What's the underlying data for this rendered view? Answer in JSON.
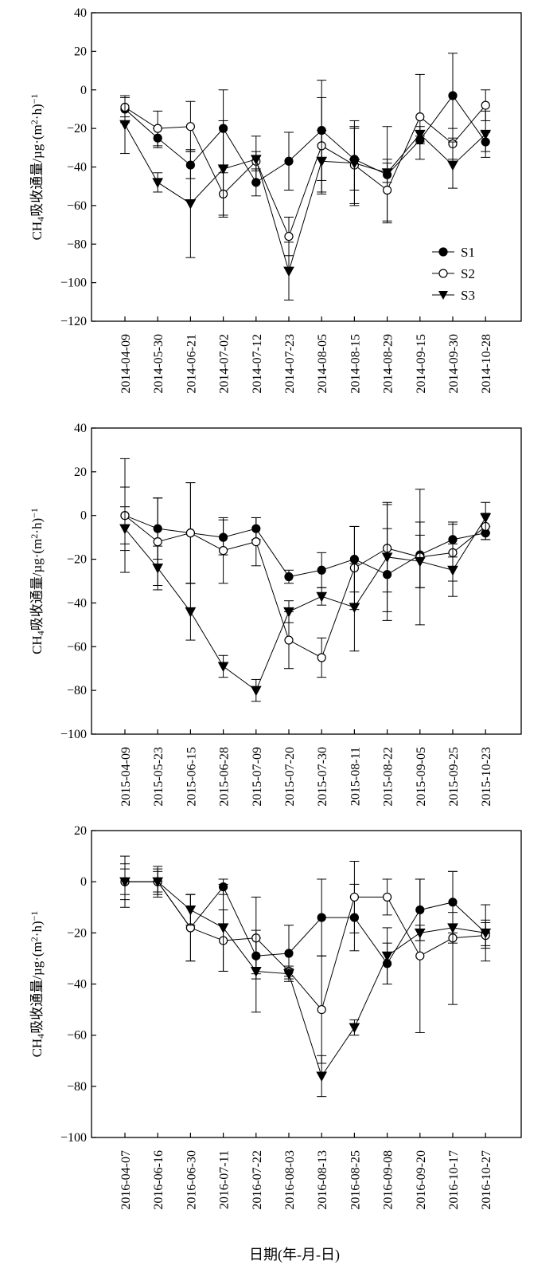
{
  "x_axis_label": "日期(年-月-日)",
  "chart_data": [
    {
      "type": "line",
      "ylabel_main": "CH",
      "ylabel_sub": "4",
      "ylabel_rest": "吸收通量/µg·(m",
      "ylabel_sup": "2",
      "ylabel_end": "·h)",
      "ylabel_sup2": "−1",
      "ylim": [
        -120,
        40
      ],
      "yticks": [
        40,
        20,
        0,
        -20,
        -40,
        -60,
        -80,
        -100,
        -120
      ],
      "categories": [
        "2014-04-09",
        "2014-05-30",
        "2014-06-21",
        "2014-07-02",
        "2014-07-12",
        "2014-07-23",
        "2014-08-05",
        "2014-08-15",
        "2014-08-29",
        "2014-09-15",
        "2014-09-30",
        "2014-10-28"
      ],
      "legend": [
        "S1",
        "S2",
        "S3"
      ],
      "legend_position": "lower-right",
      "series": [
        {
          "name": "S1",
          "marker": "filled-circle",
          "values": [
            -10,
            -25,
            -39,
            -20,
            -48,
            -37,
            -21,
            -36,
            -44,
            -26,
            -3,
            -27
          ],
          "errors": [
            7,
            5,
            7,
            20,
            7,
            15,
            26,
            16,
            25,
            2,
            22,
            5
          ]
        },
        {
          "name": "S2",
          "marker": "open-circle",
          "values": [
            -9,
            -20,
            -19,
            -54,
            -37,
            -76,
            -29,
            -39,
            -52,
            -14,
            -28,
            -8
          ],
          "errors": [
            5,
            9,
            13,
            11,
            5,
            10,
            25,
            20,
            16,
            22,
            8,
            8
          ]
        },
        {
          "name": "S3",
          "marker": "filled-triangle",
          "values": [
            -18,
            -48,
            -59,
            -41,
            -36,
            -94,
            -37,
            -38,
            -43,
            -23,
            -39,
            -23
          ],
          "errors": [
            15,
            5,
            28,
            25,
            12,
            15,
            16,
            22,
            5,
            4,
            12,
            12
          ]
        }
      ]
    },
    {
      "type": "line",
      "ylabel_main": "CH",
      "ylabel_sub": "4",
      "ylabel_rest": "吸收通量/µg·(m",
      "ylabel_sup": "2",
      "ylabel_end": "·h)",
      "ylabel_sup2": "−1",
      "ylim": [
        -100,
        40
      ],
      "yticks": [
        40,
        20,
        0,
        -20,
        -40,
        -60,
        -80,
        -100
      ],
      "categories": [
        "2015-04-09",
        "2015-05-23",
        "2015-06-15",
        "2015-06-28",
        "2015-07-09",
        "2015-07-20",
        "2015-07-30",
        "2015-08-11",
        "2015-08-22",
        "2015-09-05",
        "2015-09-25",
        "2015-10-23"
      ],
      "series": [
        {
          "name": "S1",
          "marker": "filled-circle",
          "values": [
            0,
            -6,
            -8,
            -10,
            -6,
            -28,
            -25,
            -20,
            -27,
            -18,
            -11,
            -8
          ],
          "errors": [
            13,
            14,
            23,
            8,
            5,
            3,
            8,
            15,
            21,
            15,
            8,
            3
          ]
        },
        {
          "name": "S2",
          "marker": "open-circle",
          "values": [
            0,
            -12,
            -8,
            -16,
            -12,
            -57,
            -65,
            -24,
            -15,
            -19,
            -17,
            -5
          ],
          "errors": [
            26,
            20,
            23,
            15,
            11,
            13,
            9,
            19,
            20,
            31,
            13,
            6
          ]
        },
        {
          "name": "S3",
          "marker": "filled-triangle",
          "values": [
            -6,
            -24,
            -44,
            -69,
            -80,
            -44,
            -37,
            -42,
            -19,
            -21,
            -25,
            -1
          ],
          "errors": [
            10,
            10,
            13,
            5,
            5,
            5,
            4,
            20,
            25,
            12,
            12,
            7
          ]
        }
      ]
    },
    {
      "type": "line",
      "ylabel_main": "CH",
      "ylabel_sub": "4",
      "ylabel_rest": "吸收通量/µg·(m",
      "ylabel_sup": "2",
      "ylabel_end": "·h)",
      "ylabel_sup2": "−1",
      "ylim": [
        -100,
        20
      ],
      "yticks": [
        20,
        0,
        -20,
        -40,
        -60,
        -80,
        -100
      ],
      "categories": [
        "2016-04-07",
        "2016-06-16",
        "2016-06-30",
        "2016-07-11",
        "2016-07-22",
        "2016-08-03",
        "2016-08-13",
        "2016-08-25",
        "2016-09-08",
        "2016-09-20",
        "2016-10-17",
        "2016-10-27"
      ],
      "series": [
        {
          "name": "S1",
          "marker": "filled-circle",
          "values": [
            0,
            0,
            -18,
            -2,
            -29,
            -28,
            -14,
            -14,
            -32,
            -11,
            -8,
            -20
          ],
          "errors": [
            10,
            6,
            13,
            3,
            7,
            11,
            15,
            13,
            8,
            12,
            12,
            11
          ]
        },
        {
          "name": "S2",
          "marker": "open-circle",
          "values": [
            0,
            0,
            -18,
            -23,
            -22,
            -35,
            -50,
            -6,
            -6,
            -29,
            -22,
            -21
          ],
          "errors": [
            7,
            5,
            13,
            12,
            16,
            2,
            21,
            14,
            7,
            30,
            26,
            5
          ]
        },
        {
          "name": "S3",
          "marker": "filled-triangle",
          "values": [
            0,
            0,
            -11,
            -18,
            -35,
            -36,
            -76,
            -57,
            -29,
            -20,
            -18,
            -20
          ],
          "errors": [
            5,
            4,
            6,
            17,
            16,
            2,
            8,
            3,
            11,
            3,
            6,
            5
          ]
        }
      ]
    }
  ]
}
